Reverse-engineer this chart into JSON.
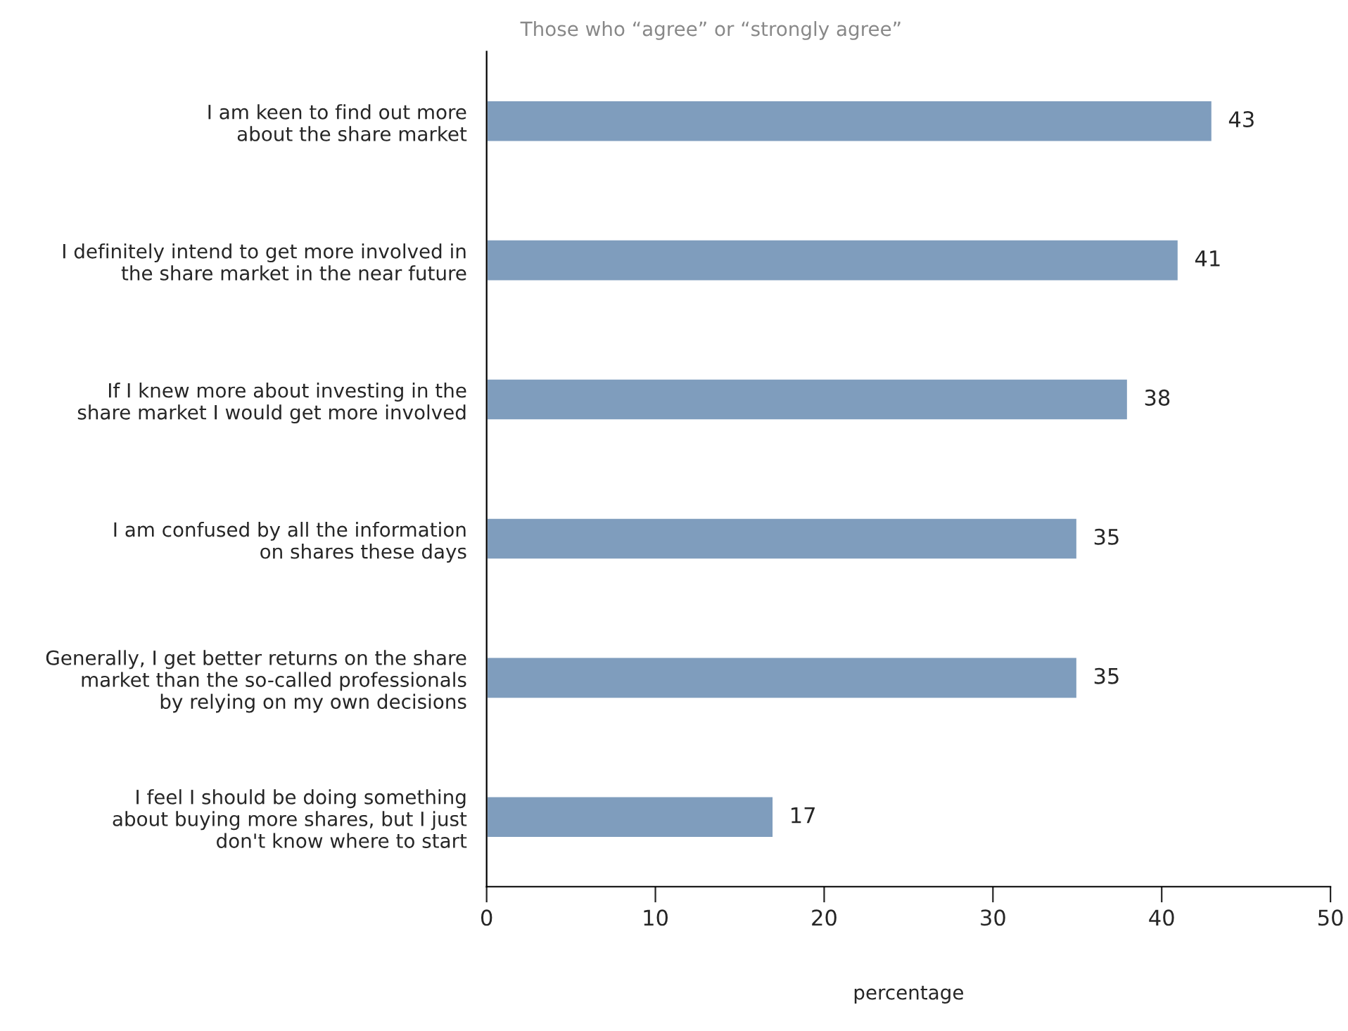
{
  "chart_data": {
    "type": "bar",
    "orientation": "horizontal",
    "title": "Those who “agree” or “strongly agree”",
    "xlabel": "percentage",
    "categories": [
      "I am keen to find out more\nabout the share market",
      "I definitely intend to get more involved in\nthe share market in the near future",
      "If I knew more about investing in the\nshare market I would get more involved",
      "I am confused by all the information\non shares these days",
      "Generally, I get better returns on the share\nmarket than the so-called professionals\nby relying on my own decisions",
      "I feel I should be doing something\nabout buying more shares, but I just\ndon't know where to start"
    ],
    "values": [
      43,
      41,
      38,
      35,
      35,
      17
    ],
    "color": "#7f9dbd",
    "xlim": [
      0,
      50
    ],
    "xticks": [
      0,
      10,
      20,
      30,
      40,
      50
    ],
    "grid": false,
    "data_labels": true
  }
}
